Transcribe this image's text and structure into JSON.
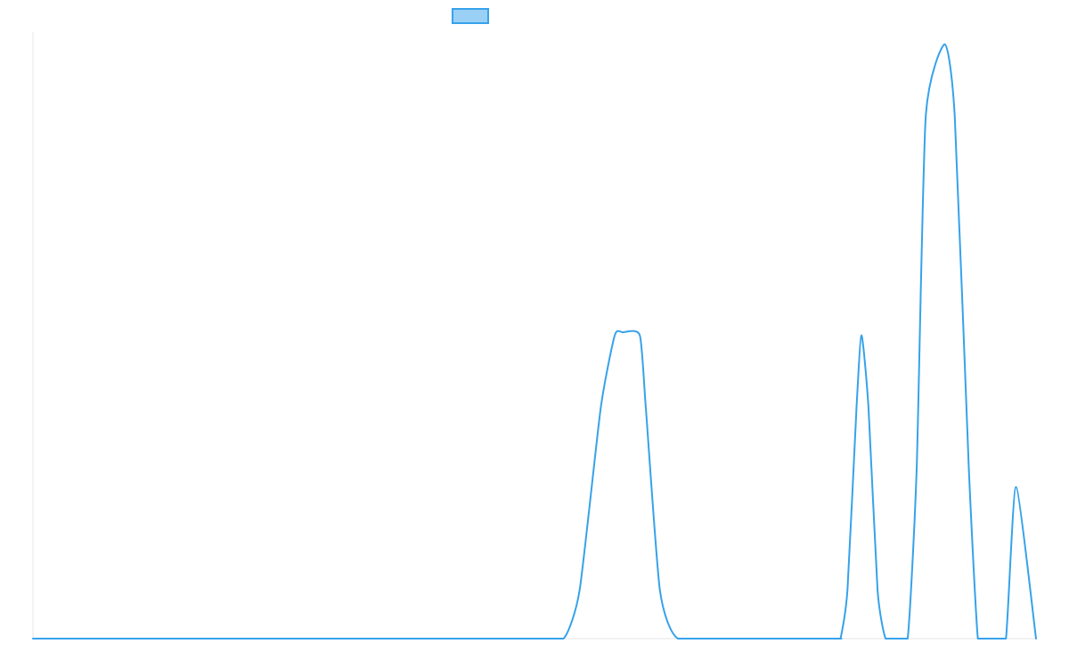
{
  "chart_data": {
    "type": "line",
    "title": "",
    "xlabel": "",
    "ylabel": "",
    "xlim": [
      0,
      100
    ],
    "ylim": [
      0,
      100
    ],
    "grid": false,
    "legend_position": "top-center",
    "colors": {
      "line": "#36a2eb",
      "legend_fill": "#9ad0f5",
      "axis": "#e5e5e5"
    },
    "series": [
      {
        "x": [
          0,
          10,
          20,
          30,
          40,
          50,
          52.9,
          54.5,
          56.6,
          58.0,
          58.8,
          60.5,
          61.1,
          62.5,
          64.3,
          70,
          80,
          80.5,
          81.2,
          82.1,
          82.6,
          83.3,
          84.2,
          85.0,
          86.0,
          87.2,
          88.1,
          89.0,
          90.9,
          91.9,
          93.3,
          94.2,
          95.0,
          95.9,
          97.0,
          98.0,
          100
        ],
        "y": [
          0,
          0,
          0,
          0,
          0,
          0,
          0,
          8,
          38,
          50,
          50.5,
          50,
          38,
          8,
          0,
          0,
          0,
          0,
          8,
          38,
          50,
          38,
          8,
          0,
          0,
          0,
          28,
          86,
          98,
          86,
          28,
          0,
          0,
          0,
          0,
          25,
          0
        ]
      }
    ]
  }
}
